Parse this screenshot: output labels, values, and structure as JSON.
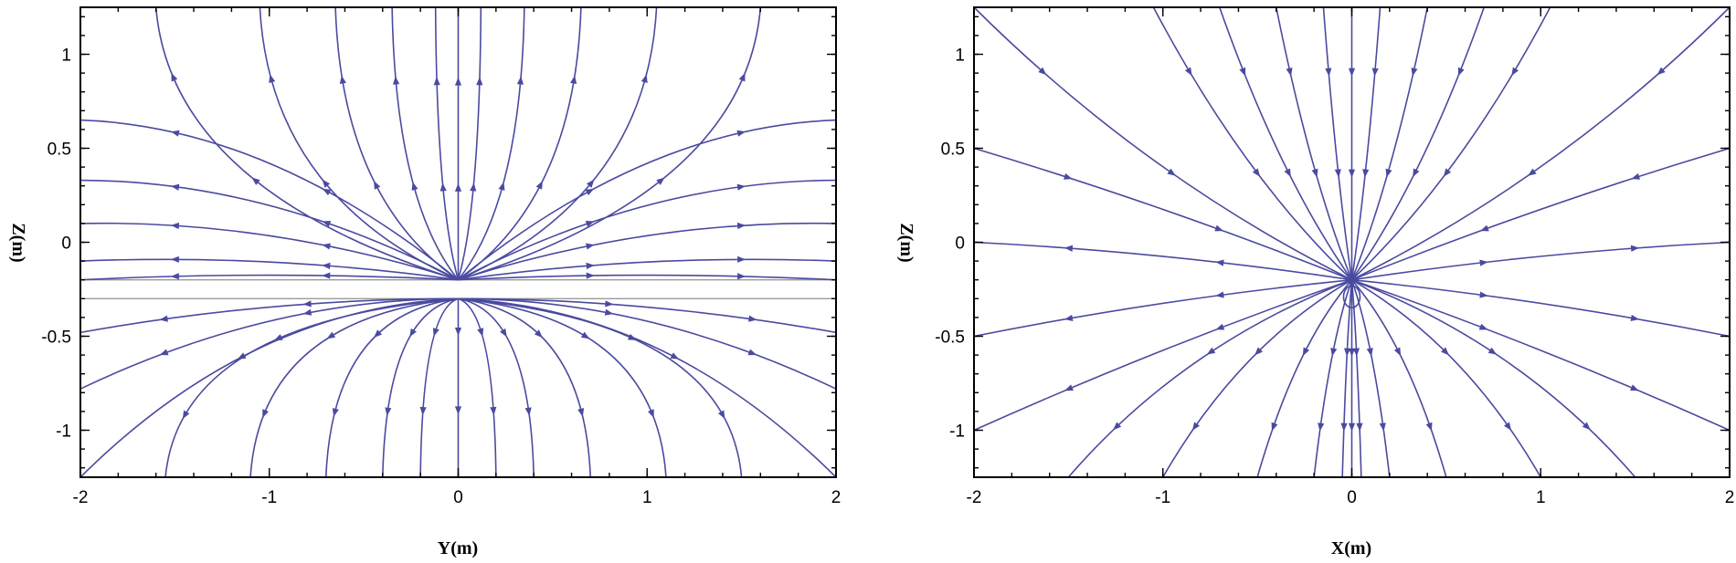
{
  "chart_data": [
    {
      "type": "streamline",
      "title": "",
      "xlabel": "Y(m)",
      "ylabel": "Z(m)",
      "xlim": [
        -2,
        2
      ],
      "ylim": [
        -1.25,
        1.25
      ],
      "xticks": [
        -2,
        -1,
        0,
        1,
        2
      ],
      "yticks": [
        -1,
        -0.5,
        0,
        0.5,
        1
      ],
      "xtick_labels": [
        "-2",
        "-1",
        "0",
        "1",
        "2"
      ],
      "ytick_labels": [
        "-1",
        "-0.5",
        "0",
        "0.5",
        "1"
      ],
      "grid": false,
      "line_color": "#4a4aa0",
      "source_point": [
        0,
        -0.2
      ],
      "interface_lines_z": [
        -0.2,
        -0.3
      ],
      "interface_line_color": "#9a9a9a",
      "upper_source": [
        0,
        -0.2
      ],
      "lower_source": [
        0,
        -0.3
      ],
      "upper_top_x": [
        -1.6,
        -1.05,
        -0.65,
        -0.35,
        -0.12,
        0,
        0.12,
        0.35,
        0.65,
        1.05,
        1.6
      ],
      "upper_side_z": [
        0.65,
        0.33,
        0.1,
        -0.1,
        -0.2
      ],
      "lower_bottom_x": [
        -1.55,
        -1.1,
        -0.7,
        -0.4,
        -0.2,
        0,
        0.2,
        0.4,
        0.7,
        1.1,
        1.5
      ],
      "lower_side_z": [
        -0.48,
        -0.78
      ]
    },
    {
      "type": "streamline",
      "title": "",
      "xlabel": "X(m)",
      "ylabel": "Z(m)",
      "xlim": [
        -2,
        2
      ],
      "ylim": [
        -1.25,
        1.25
      ],
      "xticks": [
        -2,
        -1,
        0,
        1,
        2
      ],
      "yticks": [
        -1,
        -0.5,
        0,
        0.5,
        1
      ],
      "xtick_labels": [
        "-2",
        "-1",
        "0",
        "1",
        "2"
      ],
      "ytick_labels": [
        "-1",
        "-0.5",
        "0",
        "0.5",
        "1"
      ],
      "grid": false,
      "line_color": "#4a4aa0",
      "source_point": [
        0,
        -0.2
      ],
      "top_x": [
        -2,
        -1.05,
        -0.7,
        -0.4,
        -0.15,
        0,
        0.15,
        0.4,
        0.7,
        1.05,
        2
      ],
      "side_z": [
        0.5,
        0.0,
        -0.5,
        -1.0
      ],
      "bottom_x": [
        -1.5,
        -1.0,
        -0.5,
        -0.2,
        -0.05,
        0,
        0.05,
        0.2,
        0.5,
        1.0,
        1.5
      ]
    }
  ]
}
